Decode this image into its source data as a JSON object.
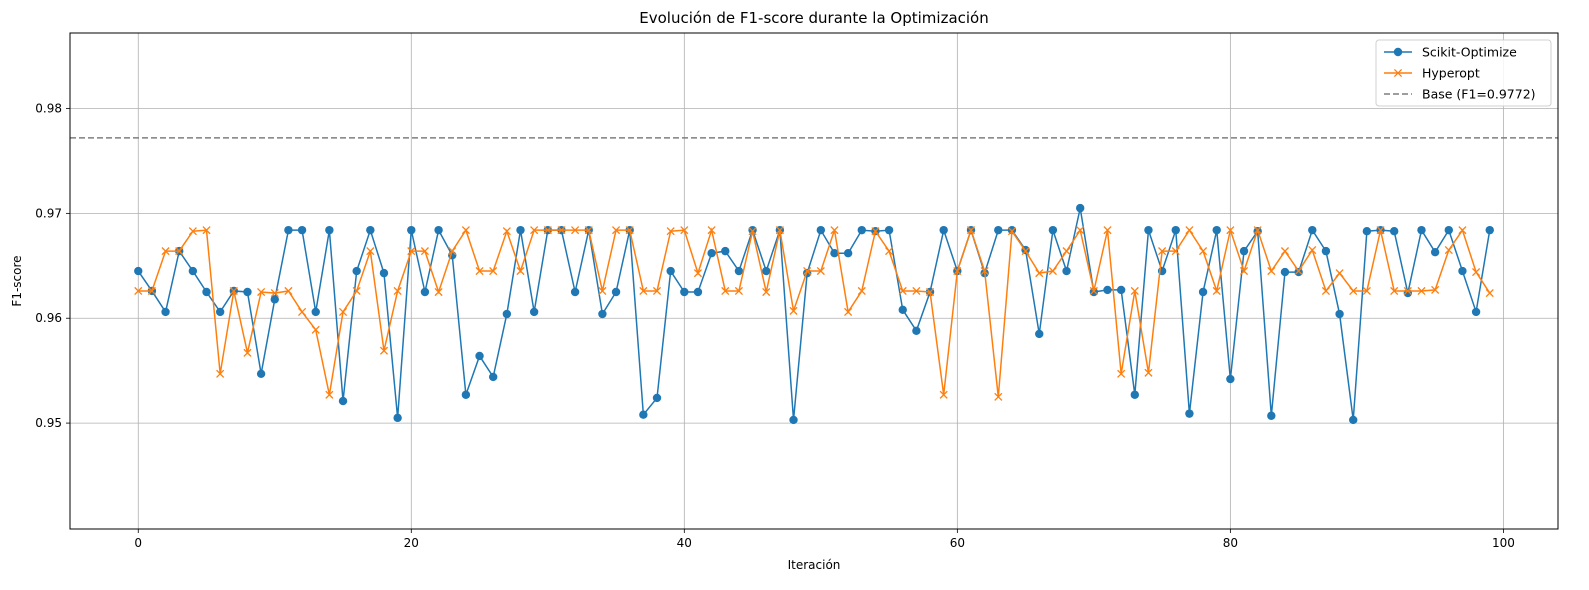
{
  "chart_data": {
    "type": "line",
    "title": "Evolución de F1-score durante la Optimización",
    "xlabel": "Iteración",
    "ylabel": "F1-score",
    "xlim": [
      -5,
      104
    ],
    "ylim": [
      0.9399,
      0.9872
    ],
    "x_ticks": [
      0,
      20,
      40,
      60,
      80,
      100
    ],
    "x_tick_labels": [
      "0",
      "20",
      "40",
      "60",
      "80",
      "100"
    ],
    "y_ticks": [
      0.95,
      0.96,
      0.97,
      0.98
    ],
    "y_tick_labels": [
      "0.95",
      "0.96",
      "0.97",
      "0.98"
    ],
    "grid": true,
    "legend_position": "top-right",
    "x": [
      0,
      1,
      2,
      3,
      4,
      5,
      6,
      7,
      8,
      9,
      10,
      11,
      12,
      13,
      14,
      15,
      16,
      17,
      18,
      19,
      20,
      21,
      22,
      23,
      24,
      25,
      26,
      27,
      28,
      29,
      30,
      31,
      32,
      33,
      34,
      35,
      36,
      37,
      38,
      39,
      40,
      41,
      42,
      43,
      44,
      45,
      46,
      47,
      48,
      49,
      50,
      51,
      52,
      53,
      54,
      55,
      56,
      57,
      58,
      59,
      60,
      61,
      62,
      63,
      64,
      65,
      66,
      67,
      68,
      69,
      70,
      71,
      72,
      73,
      74,
      75,
      76,
      77,
      78,
      79,
      80,
      81,
      82,
      83,
      84,
      85,
      86,
      87,
      88,
      89,
      90,
      91,
      92,
      93,
      94,
      95,
      96,
      97,
      98,
      99
    ],
    "series": [
      {
        "name": "Scikit-Optimize",
        "color": "#1f77b4",
        "marker": "circle",
        "values": [
          0.9645,
          0.9626,
          0.9606,
          0.9664,
          0.9645,
          0.9625,
          0.9606,
          0.9626,
          0.9625,
          0.9547,
          0.9618,
          0.9684,
          0.9684,
          0.9606,
          0.9684,
          0.9521,
          0.9645,
          0.9684,
          0.9643,
          0.9505,
          0.9684,
          0.9625,
          0.9684,
          0.966,
          0.9527,
          0.9564,
          0.9544,
          0.9604,
          0.9684,
          0.9606,
          0.9684,
          0.9684,
          0.9625,
          0.9684,
          0.9604,
          0.9625,
          0.9684,
          0.9508,
          0.9524,
          0.9645,
          0.9625,
          0.9625,
          0.9662,
          0.9664,
          0.9645,
          0.9684,
          0.9645,
          0.9684,
          0.9503,
          0.9643,
          0.9684,
          0.9662,
          0.9662,
          0.9684,
          0.9683,
          0.9684,
          0.9608,
          0.9588,
          0.9625,
          0.9684,
          0.9645,
          0.9684,
          0.9643,
          0.9684,
          0.9684,
          0.9665,
          0.9585,
          0.9684,
          0.9645,
          0.9705,
          0.9625,
          0.9627,
          0.9627,
          0.9527,
          0.9684,
          0.9645,
          0.9684,
          0.9509,
          0.9625,
          0.9684,
          0.9542,
          0.9664,
          0.9683,
          0.9507,
          0.9644,
          0.9644,
          0.9684,
          0.9664,
          0.9604,
          0.9503,
          0.9683,
          0.9684,
          0.9683,
          0.9624,
          0.9684,
          0.9663,
          0.9684,
          0.9645,
          0.9606,
          0.9684
        ]
      },
      {
        "name": "Hyperopt",
        "color": "#ff7f0e",
        "marker": "x",
        "values": [
          0.9626,
          0.9626,
          0.9664,
          0.9664,
          0.9683,
          0.9684,
          0.9547,
          0.9626,
          0.9567,
          0.9625,
          0.9624,
          0.9626,
          0.9606,
          0.9589,
          0.9527,
          0.9606,
          0.9626,
          0.9664,
          0.9569,
          0.9626,
          0.9664,
          0.9664,
          0.9625,
          0.9664,
          0.9684,
          0.9645,
          0.9645,
          0.9683,
          0.9645,
          0.9684,
          0.9684,
          0.9684,
          0.9684,
          0.9684,
          0.9626,
          0.9684,
          0.9684,
          0.9626,
          0.9626,
          0.9683,
          0.9684,
          0.9643,
          0.9684,
          0.9626,
          0.9626,
          0.9683,
          0.9625,
          0.9684,
          0.9607,
          0.9645,
          0.9645,
          0.9684,
          0.9606,
          0.9626,
          0.9683,
          0.9664,
          0.9626,
          0.9626,
          0.9625,
          0.9527,
          0.9645,
          0.9684,
          0.9645,
          0.9525,
          0.9683,
          0.9664,
          0.9643,
          0.9645,
          0.9664,
          0.9684,
          0.9626,
          0.9684,
          0.9547,
          0.9626,
          0.9548,
          0.9664,
          0.9664,
          0.9684,
          0.9664,
          0.9626,
          0.9684,
          0.9645,
          0.9684,
          0.9645,
          0.9664,
          0.9645,
          0.9665,
          0.9626,
          0.9643,
          0.9626,
          0.9626,
          0.9684,
          0.9626,
          0.9626,
          0.9626,
          0.9627,
          0.9665,
          0.9684,
          0.9644,
          0.9624
        ]
      }
    ],
    "reference_line": {
      "name": "Base (F1=0.9772)",
      "value": 0.9772,
      "color": "#7f7f7f",
      "style": "dashed"
    }
  }
}
